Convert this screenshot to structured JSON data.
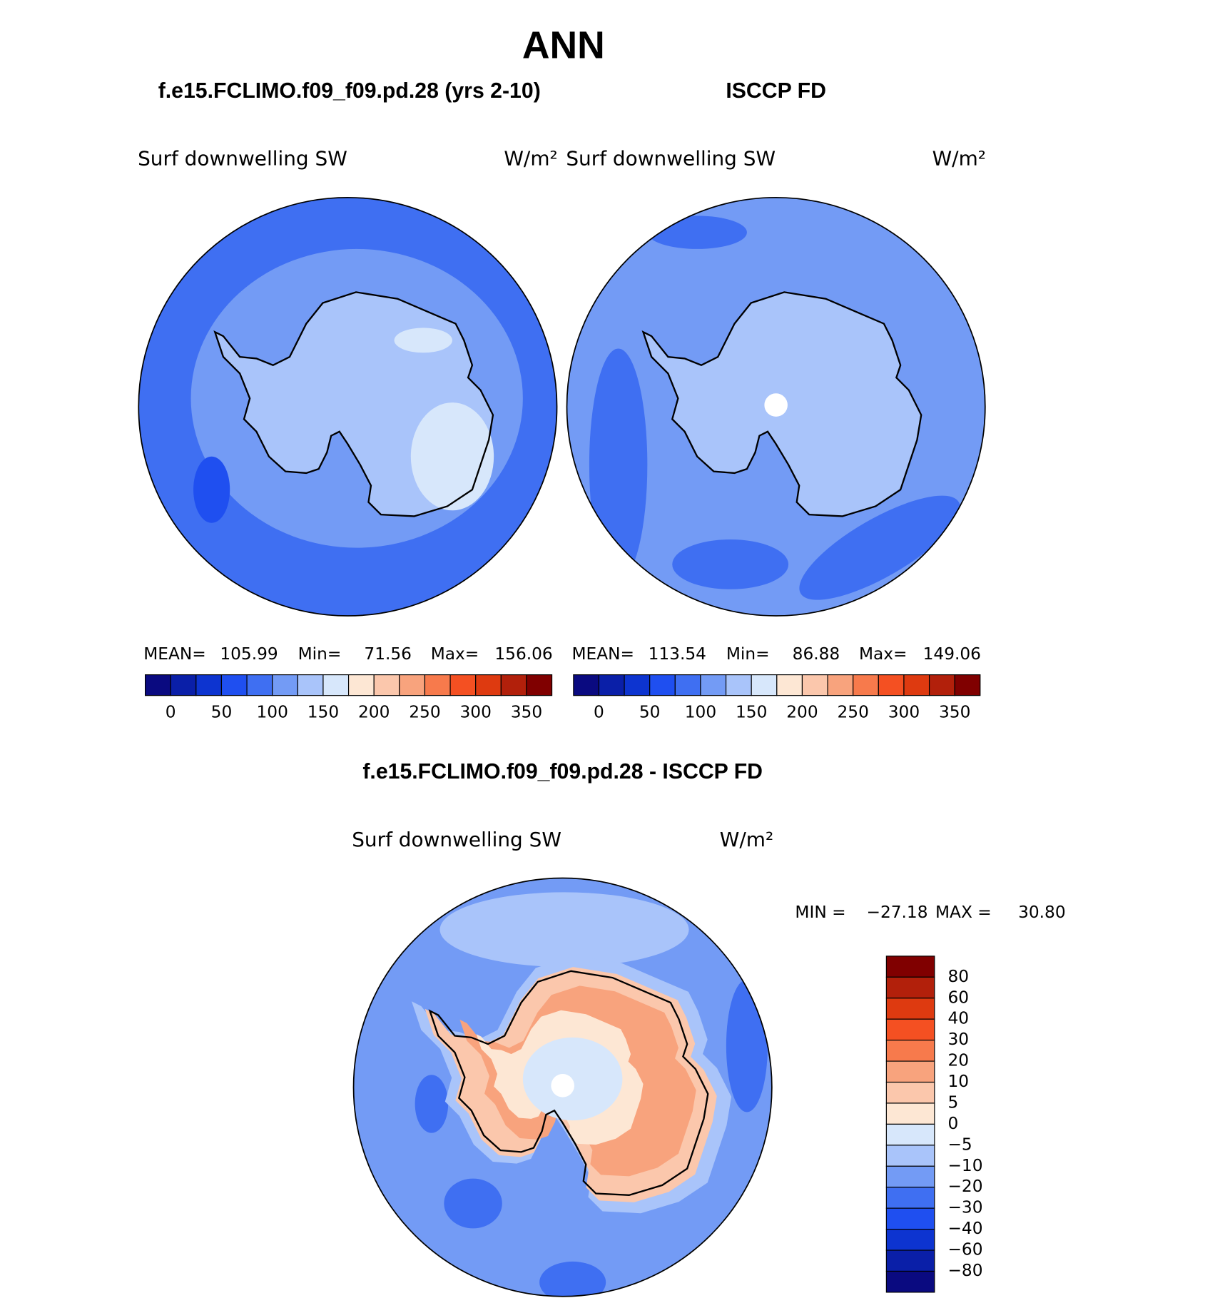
{
  "title": "ANN",
  "panels": [
    {
      "title": "f.e15.FCLIMO.f09_f09.pd.28 (yrs 2-10)",
      "variable": "Surf downwelling SW",
      "units": "W/m²",
      "stats": [
        {
          "label": "MEAN=",
          "value": 105.99
        },
        {
          "label": "Min=",
          "value": 71.56
        },
        {
          "label": "Max=",
          "value": 156.06
        }
      ]
    },
    {
      "title": "ISCCP FD",
      "variable": "Surf downwelling SW",
      "units": "W/m²",
      "stats": [
        {
          "label": "MEAN=",
          "value": 113.54
        },
        {
          "label": "Min=",
          "value": 86.88
        },
        {
          "label": "Max=",
          "value": 149.06
        }
      ]
    }
  ],
  "colorbar": {
    "colors": [
      "#0a0a80",
      "#0a1fa8",
      "#0d34d0",
      "#1f4ff0",
      "#3f6ff2",
      "#739bf5",
      "#a9c4fa",
      "#d7e7fb",
      "#fde7d4",
      "#fbc7ac",
      "#f8a37d",
      "#f77a4c",
      "#f45022",
      "#de3a10",
      "#b2200b",
      "#800000"
    ],
    "ticks": [
      0,
      50,
      100,
      150,
      200,
      250,
      300,
      350
    ]
  },
  "difference": {
    "title": "f.e15.FCLIMO.f09_f09.pd.28 - ISCCP FD",
    "variable": "Surf downwelling SW",
    "units": "W/m²",
    "stats": [
      {
        "label": "MIN =",
        "value": -27.18,
        "value_label": "−27.18"
      },
      {
        "label": "MAX =",
        "value": 30.8,
        "value_label": "30.80"
      }
    ],
    "colorbar": {
      "colors": [
        "#800000",
        "#b2200b",
        "#de3a10",
        "#f45022",
        "#f77a4c",
        "#f8a37d",
        "#fbc7ac",
        "#fde7d4",
        "#d7e7fb",
        "#a9c4fa",
        "#739bf5",
        "#3f6ff2",
        "#1f4ff0",
        "#0d34d0",
        "#0a1fa8",
        "#0a0a80"
      ],
      "ticks": [
        80,
        60,
        40,
        30,
        20,
        10,
        5,
        0,
        {
          "value": -5,
          "label": "−5"
        },
        {
          "value": -10,
          "label": "−10"
        },
        {
          "value": -20,
          "label": "−20"
        },
        {
          "value": -30,
          "label": "−30"
        },
        {
          "value": -40,
          "label": "−40"
        },
        {
          "value": -60,
          "label": "−60"
        },
        {
          "value": -80,
          "label": "−80"
        }
      ]
    }
  }
}
